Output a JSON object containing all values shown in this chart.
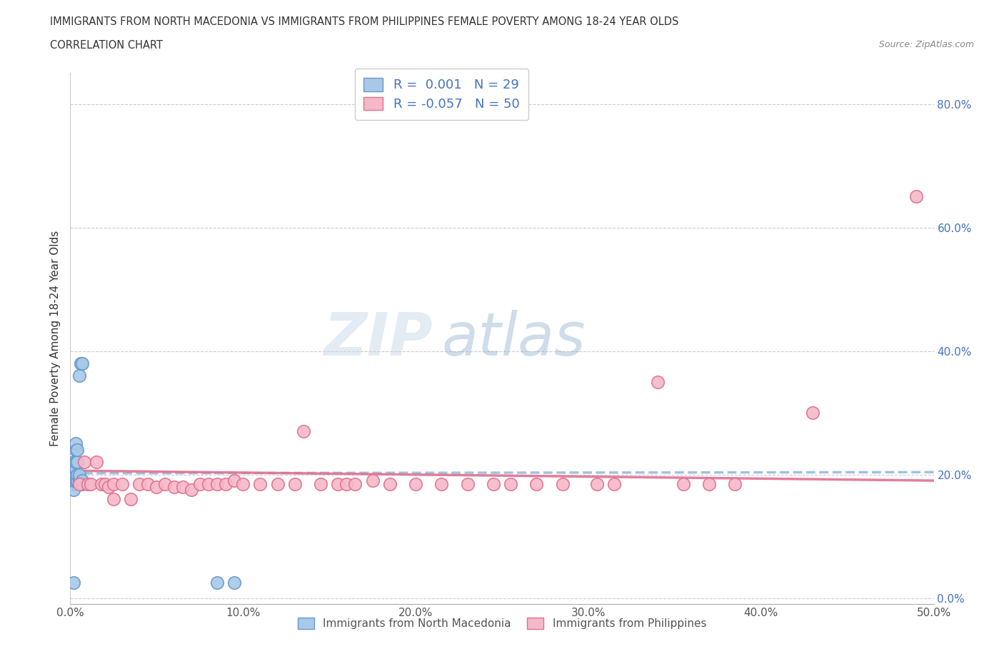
{
  "title_line1": "IMMIGRANTS FROM NORTH MACEDONIA VS IMMIGRANTS FROM PHILIPPINES FEMALE POVERTY AMONG 18-24 YEAR OLDS",
  "title_line2": "CORRELATION CHART",
  "source": "Source: ZipAtlas.com",
  "ylabel": "Female Poverty Among 18-24 Year Olds",
  "xlim": [
    0,
    0.5
  ],
  "ylim": [
    -0.01,
    0.85
  ],
  "yticks": [
    0.0,
    0.2,
    0.4,
    0.6,
    0.8
  ],
  "ytick_labels": [
    "0.0%",
    "20.0%",
    "40.0%",
    "60.0%",
    "80.0%"
  ],
  "xticks": [
    0.0,
    0.1,
    0.2,
    0.3,
    0.4,
    0.5
  ],
  "xtick_labels": [
    "0.0%",
    "10.0%",
    "20.0%",
    "30.0%",
    "40.0%",
    "50.0%"
  ],
  "blue_color": "#a8c8e8",
  "blue_edge": "#6699cc",
  "pink_color": "#f5b8c8",
  "pink_edge": "#e07090",
  "trend_blue_color": "#99bbdd",
  "trend_pink_color": "#e07090",
  "R_blue": 0.001,
  "N_blue": 29,
  "R_pink": -0.057,
  "N_pink": 50,
  "legend_label_blue": "Immigrants from North Macedonia",
  "legend_label_pink": "Immigrants from Philippines",
  "watermark_zip": "ZIP",
  "watermark_atlas": "atlas",
  "blue_x": [
    0.001,
    0.001,
    0.001,
    0.002,
    0.002,
    0.002,
    0.002,
    0.002,
    0.003,
    0.003,
    0.003,
    0.003,
    0.003,
    0.003,
    0.003,
    0.004,
    0.004,
    0.004,
    0.004,
    0.005,
    0.005,
    0.005,
    0.006,
    0.006,
    0.007,
    0.007,
    0.007,
    0.095,
    0.085
  ],
  "blue_y": [
    0.185,
    0.19,
    0.2,
    0.175,
    0.19,
    0.2,
    0.22,
    0.025,
    0.19,
    0.195,
    0.2,
    0.21,
    0.22,
    0.24,
    0.25,
    0.19,
    0.2,
    0.22,
    0.24,
    0.19,
    0.2,
    0.36,
    0.185,
    0.38,
    0.185,
    0.19,
    0.38,
    0.025,
    0.025
  ],
  "pink_x": [
    0.005,
    0.008,
    0.01,
    0.012,
    0.015,
    0.018,
    0.02,
    0.022,
    0.025,
    0.025,
    0.03,
    0.035,
    0.04,
    0.045,
    0.05,
    0.055,
    0.06,
    0.065,
    0.07,
    0.075,
    0.08,
    0.085,
    0.09,
    0.095,
    0.1,
    0.11,
    0.12,
    0.13,
    0.135,
    0.145,
    0.155,
    0.16,
    0.165,
    0.175,
    0.185,
    0.2,
    0.215,
    0.23,
    0.245,
    0.255,
    0.27,
    0.285,
    0.305,
    0.315,
    0.34,
    0.355,
    0.37,
    0.385,
    0.43,
    0.49
  ],
  "pink_y": [
    0.185,
    0.22,
    0.185,
    0.185,
    0.22,
    0.185,
    0.185,
    0.18,
    0.185,
    0.16,
    0.185,
    0.16,
    0.185,
    0.185,
    0.18,
    0.185,
    0.18,
    0.18,
    0.175,
    0.185,
    0.185,
    0.185,
    0.185,
    0.19,
    0.185,
    0.185,
    0.185,
    0.185,
    0.27,
    0.185,
    0.185,
    0.185,
    0.185,
    0.19,
    0.185,
    0.185,
    0.185,
    0.185,
    0.185,
    0.185,
    0.185,
    0.185,
    0.185,
    0.185,
    0.35,
    0.185,
    0.185,
    0.185,
    0.3,
    0.65
  ]
}
